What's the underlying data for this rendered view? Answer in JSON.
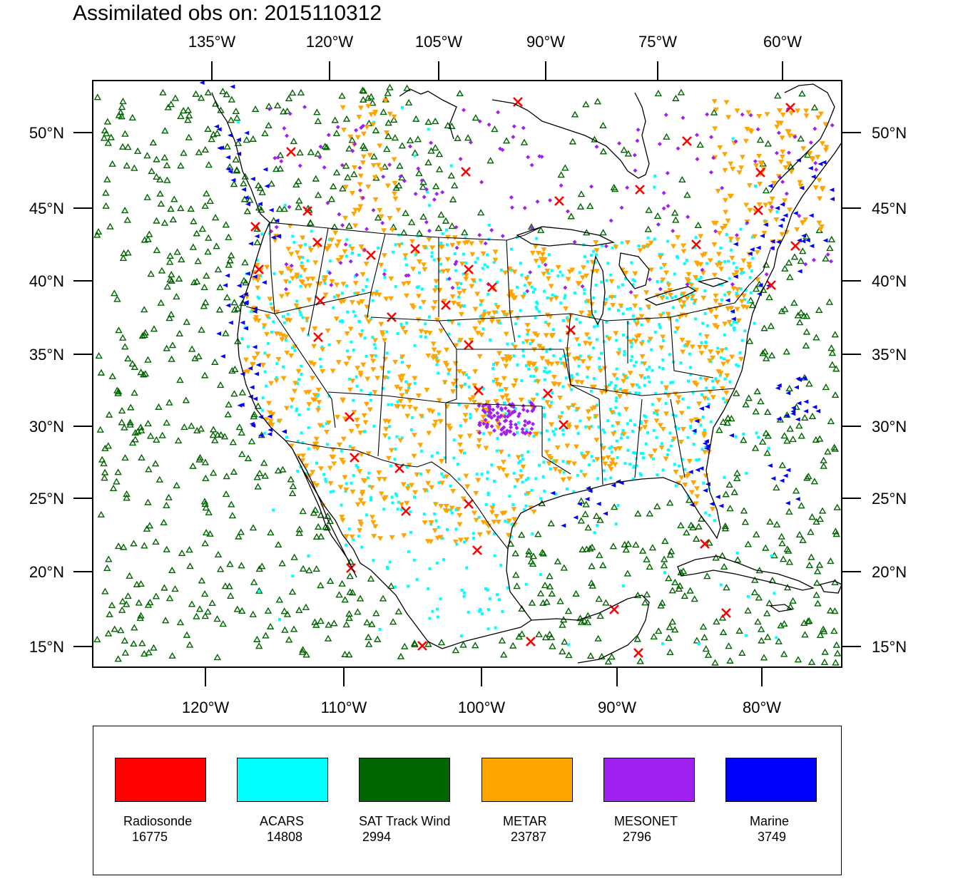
{
  "title": "Assimilated obs on: 2015110312",
  "map": {
    "top_lon_labels": [
      "135°W",
      "120°W",
      "105°W",
      "90°W",
      "75°W",
      "60°W"
    ],
    "bottom_lon_labels": [
      "120°W",
      "110°W",
      "100°W",
      "90°W",
      "80°W"
    ],
    "lat_labels": [
      "50°N",
      "45°N",
      "40°N",
      "35°N",
      "30°N",
      "25°N",
      "20°N",
      "15°N"
    ],
    "lon_range": [
      -128,
      -75
    ],
    "lat_range": [
      14,
      53
    ]
  },
  "legend": [
    {
      "name": "Radiosonde",
      "count": "16775",
      "color": "#ff0000",
      "marker": "x-mark"
    },
    {
      "name": "ACARS",
      "count": "14808",
      "color": "#00ffff",
      "marker": "small-square"
    },
    {
      "name": "SAT Track Wind",
      "count": "2994",
      "color": "#006400",
      "marker": "open-triangle"
    },
    {
      "name": "METAR",
      "count": "23787",
      "color": "#ffa500",
      "marker": "inverted-triangle"
    },
    {
      "name": "MESONET",
      "count": "2796",
      "color": "#a020f0",
      "marker": "diamond"
    },
    {
      "name": "Marine",
      "count": "3749",
      "color": "#0000ff",
      "marker": "left-triangle"
    }
  ]
}
